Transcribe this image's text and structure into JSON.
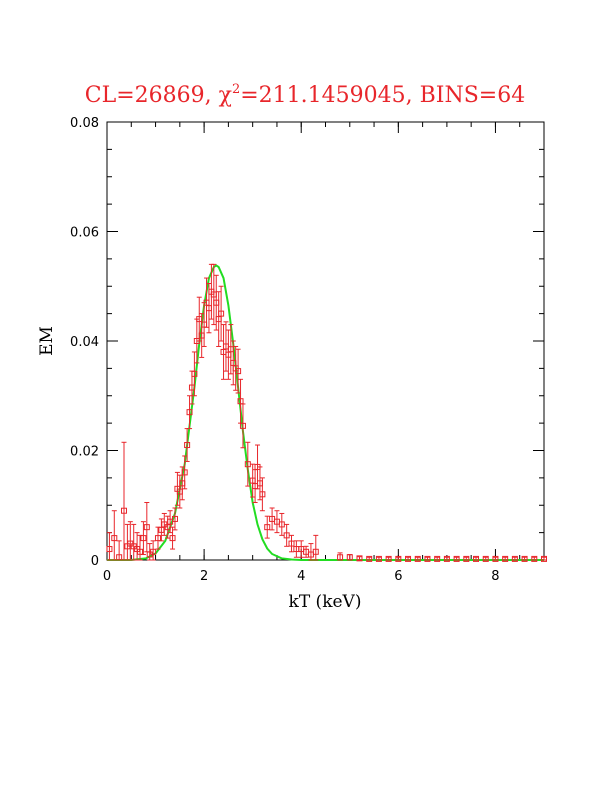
{
  "chart_data": {
    "type": "scatter",
    "title": {
      "prefix": "CL=26869, ",
      "chi": "χ",
      "sup": "2",
      "suffix": "=211.1459045, BINS=64"
    },
    "xlabel": "kT (keV)",
    "ylabel": "EM",
    "xlim": [
      0,
      9
    ],
    "ylim": [
      0,
      0.08
    ],
    "xticks": [
      0,
      2,
      4,
      6,
      8
    ],
    "xtick_labels": [
      "0",
      "2",
      "4",
      "6",
      "8"
    ],
    "yticks": [
      0,
      0.02,
      0.04,
      0.06,
      0.08
    ],
    "ytick_labels": [
      "0",
      "0.02",
      "0.04",
      "0.06",
      "0.08"
    ],
    "x_minor_step": 0.5,
    "y_minor_step": 0.005,
    "colors": {
      "data": "#e8262b",
      "model": "#22dd22",
      "axes": "#000000"
    },
    "series": [
      {
        "kind": "points_with_errorbars",
        "marker": "open-square",
        "x": [
          0.05,
          0.15,
          0.25,
          0.35,
          0.42,
          0.48,
          0.55,
          0.62,
          0.68,
          0.75,
          0.82,
          0.88,
          0.95,
          1.05,
          1.12,
          1.18,
          1.25,
          1.3,
          1.35,
          1.4,
          1.45,
          1.5,
          1.55,
          1.6,
          1.65,
          1.7,
          1.75,
          1.8,
          1.85,
          1.9,
          1.95,
          2.0,
          2.05,
          2.1,
          2.15,
          2.2,
          2.25,
          2.3,
          2.35,
          2.4,
          2.45,
          2.5,
          2.55,
          2.6,
          2.65,
          2.7,
          2.75,
          2.8,
          2.9,
          3.0,
          3.05,
          3.1,
          3.15,
          3.2,
          3.3,
          3.4,
          3.5,
          3.6,
          3.7,
          3.8,
          3.9,
          4.0,
          4.1,
          4.2,
          4.3,
          4.8,
          5.0,
          5.2,
          5.4,
          5.6,
          5.8,
          6.0,
          6.2,
          6.4,
          6.6,
          6.8,
          7.0,
          7.2,
          7.4,
          7.6,
          7.8,
          8.0,
          8.2,
          8.4,
          8.6,
          8.8,
          9.0
        ],
        "y": [
          0.002,
          0.004,
          0.0005,
          0.009,
          0.0025,
          0.003,
          0.0025,
          0.002,
          0.0015,
          0.004,
          0.006,
          0.001,
          0.0015,
          0.004,
          0.0055,
          0.0065,
          0.006,
          0.007,
          0.004,
          0.0075,
          0.013,
          0.0125,
          0.014,
          0.016,
          0.021,
          0.027,
          0.0315,
          0.034,
          0.04,
          0.044,
          0.041,
          0.043,
          0.047,
          0.046,
          0.049,
          0.0485,
          0.047,
          0.044,
          0.045,
          0.038,
          0.039,
          0.0375,
          0.0385,
          0.036,
          0.035,
          0.0345,
          0.029,
          0.0245,
          0.0175,
          0.0145,
          0.0135,
          0.017,
          0.014,
          0.012,
          0.006,
          0.0075,
          0.007,
          0.0065,
          0.0045,
          0.003,
          0.002,
          0.002,
          0.0015,
          0.001,
          0.0015,
          0.0005,
          0.0005,
          0.0003,
          0.0002,
          0.0002,
          0.0002,
          0.0002,
          0.0002,
          0.0002,
          0.0002,
          0.0002,
          0.0002,
          0.0002,
          0.0002,
          0.0002,
          0.0002,
          0.0002,
          0.0002,
          0.0002,
          0.0002,
          0.0002,
          0.0002
        ],
        "yerr": [
          0.003,
          0.005,
          0.003,
          0.0125,
          0.004,
          0.004,
          0.004,
          0.003,
          0.003,
          0.003,
          0.0045,
          0.002,
          0.002,
          0.002,
          0.002,
          0.002,
          0.002,
          0.002,
          0.002,
          0.002,
          0.003,
          0.003,
          0.003,
          0.003,
          0.003,
          0.003,
          0.003,
          0.004,
          0.004,
          0.004,
          0.004,
          0.004,
          0.0045,
          0.0045,
          0.005,
          0.0055,
          0.005,
          0.005,
          0.005,
          0.005,
          0.0045,
          0.0045,
          0.0045,
          0.004,
          0.004,
          0.004,
          0.004,
          0.004,
          0.004,
          0.003,
          0.003,
          0.004,
          0.003,
          0.003,
          0.002,
          0.002,
          0.002,
          0.002,
          0.002,
          0.0015,
          0.0015,
          0.0015,
          0.001,
          0.002,
          0.003,
          0.0008,
          0.0005,
          0.0003,
          0.0003,
          0.0003,
          0.0003,
          0.0003,
          0.0003,
          0.0003,
          0.0003,
          0.0003,
          0.0003,
          0.0003,
          0.0003,
          0.0003,
          0.0003,
          0.0003,
          0.0003,
          0.0003,
          0.0003,
          0.0003,
          0.0003
        ]
      },
      {
        "kind": "model_curve",
        "x": [
          0,
          0.5,
          0.8,
          1.0,
          1.2,
          1.4,
          1.6,
          1.8,
          1.9,
          2.0,
          2.1,
          2.2,
          2.25,
          2.3,
          2.4,
          2.5,
          2.6,
          2.7,
          2.8,
          2.9,
          3.0,
          3.1,
          3.2,
          3.3,
          3.4,
          3.6,
          3.8,
          4.0,
          4.5,
          5.0,
          6.0,
          7.0,
          8.0,
          9.0
        ],
        "y": [
          0,
          0,
          0.0003,
          0.0012,
          0.0035,
          0.0085,
          0.0175,
          0.0315,
          0.0395,
          0.0465,
          0.0515,
          0.0535,
          0.0538,
          0.0535,
          0.0515,
          0.0465,
          0.0395,
          0.0315,
          0.0235,
          0.0165,
          0.0105,
          0.0065,
          0.0038,
          0.0021,
          0.0011,
          0.0003,
          0.0001,
          0,
          0,
          0,
          0,
          0,
          0,
          0
        ]
      }
    ]
  }
}
